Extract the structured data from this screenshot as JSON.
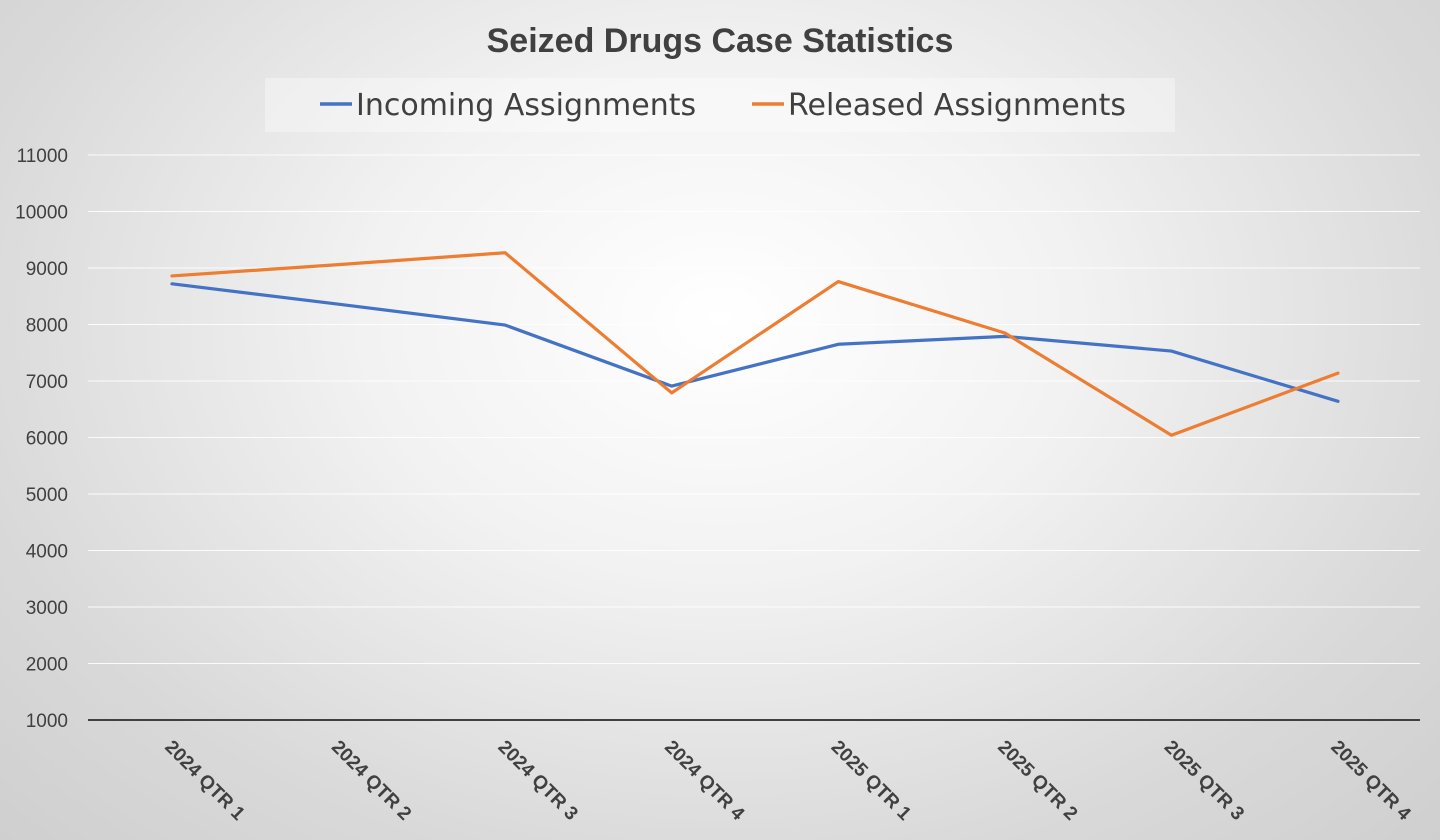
{
  "chart_data": {
    "type": "line",
    "title": "Seized Drugs Case Statistics",
    "xlabel": "",
    "ylabel": "",
    "categories": [
      "2024 QTR 1",
      "2024 QTR 2",
      "2024 QTR 3",
      "2024 QTR 4",
      "2025 QTR 1",
      "2025 QTR 2",
      "2025 QTR 3",
      "2025 QTR 4"
    ],
    "series": [
      {
        "name": "Incoming Assignments",
        "color": "#4472c4",
        "values": [
          8720,
          8360,
          7990,
          6910,
          7650,
          7790,
          7530,
          6640
        ]
      },
      {
        "name": "Released Assignments",
        "color": "#ed7d31",
        "values": [
          8860,
          9060,
          9270,
          6790,
          8760,
          7850,
          6040,
          7140
        ]
      }
    ],
    "ylim": [
      1000,
      11000
    ],
    "yticks": [
      1000,
      2000,
      3000,
      4000,
      5000,
      6000,
      7000,
      8000,
      9000,
      10000,
      11000
    ],
    "grid": true,
    "legend": "top"
  }
}
